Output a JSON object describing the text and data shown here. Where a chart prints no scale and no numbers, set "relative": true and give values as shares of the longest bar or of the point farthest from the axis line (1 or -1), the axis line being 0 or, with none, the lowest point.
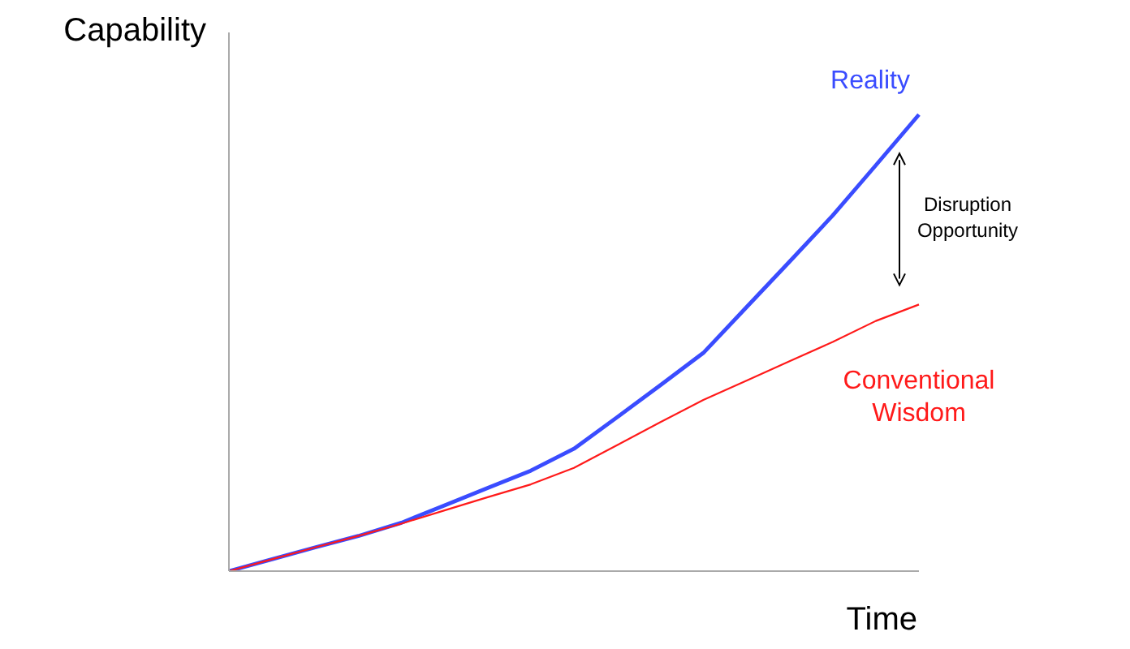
{
  "chart_data": {
    "type": "line",
    "relative": true,
    "xlabel": "Time",
    "ylabel": "Capability",
    "categories": [
      null,
      null,
      null,
      null,
      null,
      null,
      null,
      null,
      null,
      null,
      null,
      null,
      null,
      null,
      null,
      null,
      null
    ],
    "series": [
      {
        "name": "Reality",
        "color": "#3a4cff",
        "values": [
          0,
          0.026,
          0.052,
          0.077,
          0.106,
          0.144,
          0.182,
          0.22,
          0.268,
          0.337,
          0.407,
          0.478,
          0.578,
          0.678,
          0.779,
          0.889,
          1
        ]
      },
      {
        "name": "Conventional Wisdom",
        "color": "#ff1a1a",
        "values": [
          0,
          0.026,
          0.052,
          0.077,
          0.104,
          0.133,
          0.162,
          0.19,
          0.226,
          0.276,
          0.326,
          0.375,
          0.417,
          0.46,
          0.502,
          0.548,
          0.584
        ]
      }
    ],
    "annotations": [
      "Disruption Opportunity"
    ],
    "grid": false,
    "legend": false,
    "marker": "none"
  }
}
